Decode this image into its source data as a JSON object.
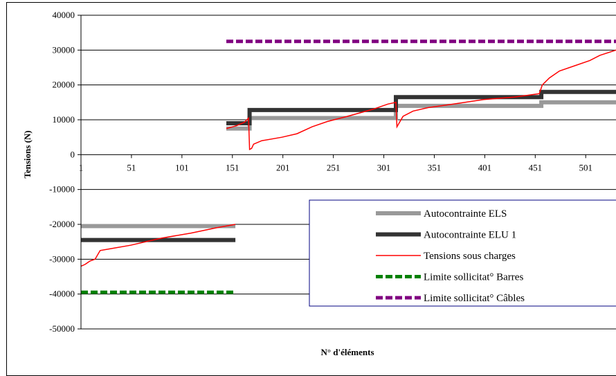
{
  "chart_data": {
    "type": "line",
    "xlabel": "N° d'éléments",
    "ylabel": "Tensions (N)",
    "xlim": [
      1,
      531
    ],
    "ylim": [
      -50000,
      40000
    ],
    "x_ticks": [
      "1",
      "51",
      "101",
      "151",
      "201",
      "251",
      "301",
      "351",
      "401",
      "451",
      "501"
    ],
    "x_tick_values": [
      1,
      51,
      101,
      151,
      201,
      251,
      301,
      351,
      401,
      451,
      501
    ],
    "y_ticks": [
      "40000",
      "30000",
      "20000",
      "10000",
      "0",
      "-10000",
      "-20000",
      "-30000",
      "-40000",
      "-50000"
    ],
    "y_tick_values": [
      40000,
      30000,
      20000,
      10000,
      0,
      -10000,
      -20000,
      -30000,
      -40000,
      -50000
    ],
    "grid": "horizontal",
    "legend_position": "bottom-right",
    "series": [
      {
        "name": "Autocontrainte ELS",
        "color": "#999999",
        "style": "thick",
        "points": [
          [
            145,
            7500
          ],
          [
            168,
            7500
          ],
          [
            168,
            10500
          ],
          [
            313,
            10500
          ],
          [
            313,
            14000
          ],
          [
            457,
            14000
          ],
          [
            457,
            15000
          ],
          [
            531,
            15000
          ]
        ],
        "points2": [
          [
            1,
            -20500
          ],
          [
            154,
            -20500
          ]
        ]
      },
      {
        "name": "Autocontrainte ELU 1",
        "color": "#333333",
        "style": "thick",
        "points": [
          [
            145,
            9000
          ],
          [
            168,
            9000
          ],
          [
            168,
            12800
          ],
          [
            313,
            12800
          ],
          [
            313,
            16500
          ],
          [
            457,
            16500
          ],
          [
            457,
            18000
          ],
          [
            531,
            18000
          ]
        ],
        "points2": [
          [
            1,
            -24500
          ],
          [
            154,
            -24500
          ]
        ]
      },
      {
        "name": "Tensions sous charges",
        "color": "#ff0000",
        "style": "thin",
        "points": [
          [
            145,
            7500
          ],
          [
            155,
            8300
          ],
          [
            163,
            9300
          ],
          [
            167,
            10500
          ],
          [
            168,
            1500
          ],
          [
            170,
            1800
          ],
          [
            172,
            3000
          ],
          [
            180,
            4000
          ],
          [
            200,
            5000
          ],
          [
            215,
            6000
          ],
          [
            230,
            8000
          ],
          [
            245,
            9500
          ],
          [
            265,
            11000
          ],
          [
            290,
            13000
          ],
          [
            305,
            14500
          ],
          [
            313,
            15000
          ],
          [
            314,
            8000
          ],
          [
            320,
            11000
          ],
          [
            330,
            12500
          ],
          [
            345,
            13500
          ],
          [
            370,
            14500
          ],
          [
            400,
            15800
          ],
          [
            430,
            16500
          ],
          [
            455,
            17500
          ],
          [
            458,
            20000
          ],
          [
            465,
            22000
          ],
          [
            475,
            24000
          ],
          [
            490,
            25500
          ],
          [
            505,
            27000
          ],
          [
            515,
            28500
          ],
          [
            531,
            30000
          ]
        ],
        "points2": [
          [
            1,
            -32000
          ],
          [
            5,
            -31500
          ],
          [
            10,
            -30500
          ],
          [
            15,
            -30000
          ],
          [
            20,
            -27500
          ],
          [
            30,
            -27000
          ],
          [
            50,
            -26000
          ],
          [
            80,
            -24000
          ],
          [
            110,
            -22500
          ],
          [
            135,
            -21000
          ],
          [
            154,
            -20000
          ]
        ]
      },
      {
        "name": "Limite sollicitat° Barres",
        "color": "#008000",
        "style": "dashed",
        "points": [
          [
            1,
            -39500
          ],
          [
            154,
            -39500
          ]
        ]
      },
      {
        "name": "Limite sollicitat° Câbles",
        "color": "#800080",
        "style": "dashed",
        "points": [
          [
            145,
            32500
          ],
          [
            531,
            32500
          ]
        ]
      }
    ]
  }
}
